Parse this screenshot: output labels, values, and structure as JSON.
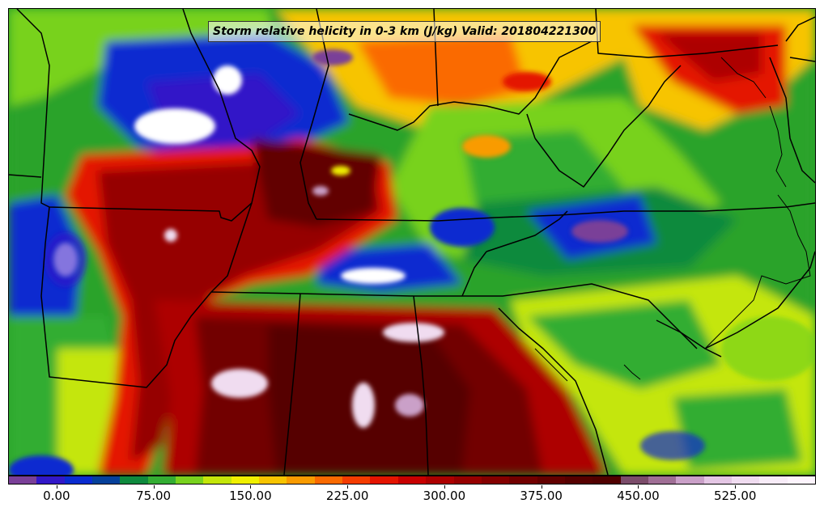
{
  "title": "Storm relative helicity in 0-3 km (J/kg) Valid: 201804221300",
  "colorbar": {
    "colors": [
      "#7a3f98",
      "#3218c8",
      "#0a2bd0",
      "#05409a",
      "#0e8a3e",
      "#33ad33",
      "#78d21e",
      "#c4e60a",
      "#f0f000",
      "#f7c400",
      "#f99b00",
      "#fa6a00",
      "#f43c00",
      "#e41400",
      "#c80000",
      "#ad0000",
      "#960000",
      "#840000",
      "#720000",
      "#620000",
      "#560000",
      "#500000",
      "#7b4c6a",
      "#a06f96",
      "#caa0c8",
      "#e4c6e4",
      "#f0dcf0",
      "#f8ecf8",
      "#fdf4fd"
    ],
    "labels": [
      "0.00",
      "75.00",
      "150.00",
      "225.00",
      "300.00",
      "375.00",
      "450.00",
      "525.00"
    ],
    "label_values": [
      0,
      75,
      150,
      225,
      300,
      375,
      450,
      525
    ],
    "range": [
      -37.5,
      587.5
    ]
  }
}
